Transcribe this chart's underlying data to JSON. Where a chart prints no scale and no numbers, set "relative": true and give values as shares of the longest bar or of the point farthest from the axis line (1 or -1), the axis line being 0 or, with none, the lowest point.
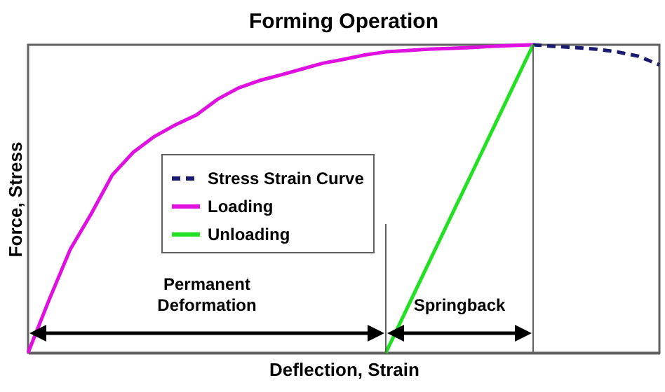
{
  "chart_data": {
    "type": "line",
    "title": "Forming Operation",
    "xlabel": "Deflection, Strain",
    "ylabel": "Force, Stress",
    "relative": true,
    "legend": "left",
    "categories": [
      null,
      null,
      null,
      null,
      null,
      null,
      null,
      null,
      null,
      null,
      null,
      null,
      null,
      null,
      null,
      null,
      null,
      null,
      null,
      null,
      null,
      null,
      null,
      null,
      null,
      null,
      null,
      null,
      null,
      null,
      null
    ],
    "series": [
      {
        "name": "Stress Strain Curve",
        "color": "#1a1a6e",
        "line_style": "dashed",
        "values": [
          null,
          null,
          null,
          null,
          null,
          null,
          null,
          null,
          null,
          null,
          null,
          null,
          null,
          null,
          null,
          null,
          null,
          null,
          null,
          null,
          null,
          null,
          null,
          null,
          1,
          0.995,
          0.991,
          0.986,
          0.977,
          0.963,
          0.935
        ]
      },
      {
        "name": "Loading",
        "color": "#e010e0",
        "line_style": "solid",
        "values": [
          0,
          0.172,
          0.335,
          0.451,
          0.577,
          0.651,
          0.702,
          0.74,
          0.772,
          0.823,
          0.86,
          0.884,
          0.902,
          0.921,
          0.94,
          0.953,
          0.967,
          0.977,
          0.981,
          0.986,
          0.988,
          0.991,
          0.995,
          0.998,
          1,
          null,
          null,
          null,
          null,
          null,
          null
        ]
      },
      {
        "name": "Unloading",
        "color": "#22e022",
        "line_style": "solid",
        "values": [
          null,
          null,
          null,
          null,
          null,
          null,
          null,
          null,
          null,
          null,
          null,
          null,
          null,
          null,
          null,
          null,
          null,
          0,
          0.143,
          0.286,
          0.429,
          0.571,
          0.714,
          0.857,
          1,
          null,
          null,
          null,
          null,
          null,
          null
        ]
      }
    ],
    "annotations": [
      "Permanent\nDeformation",
      "Springback"
    ]
  }
}
